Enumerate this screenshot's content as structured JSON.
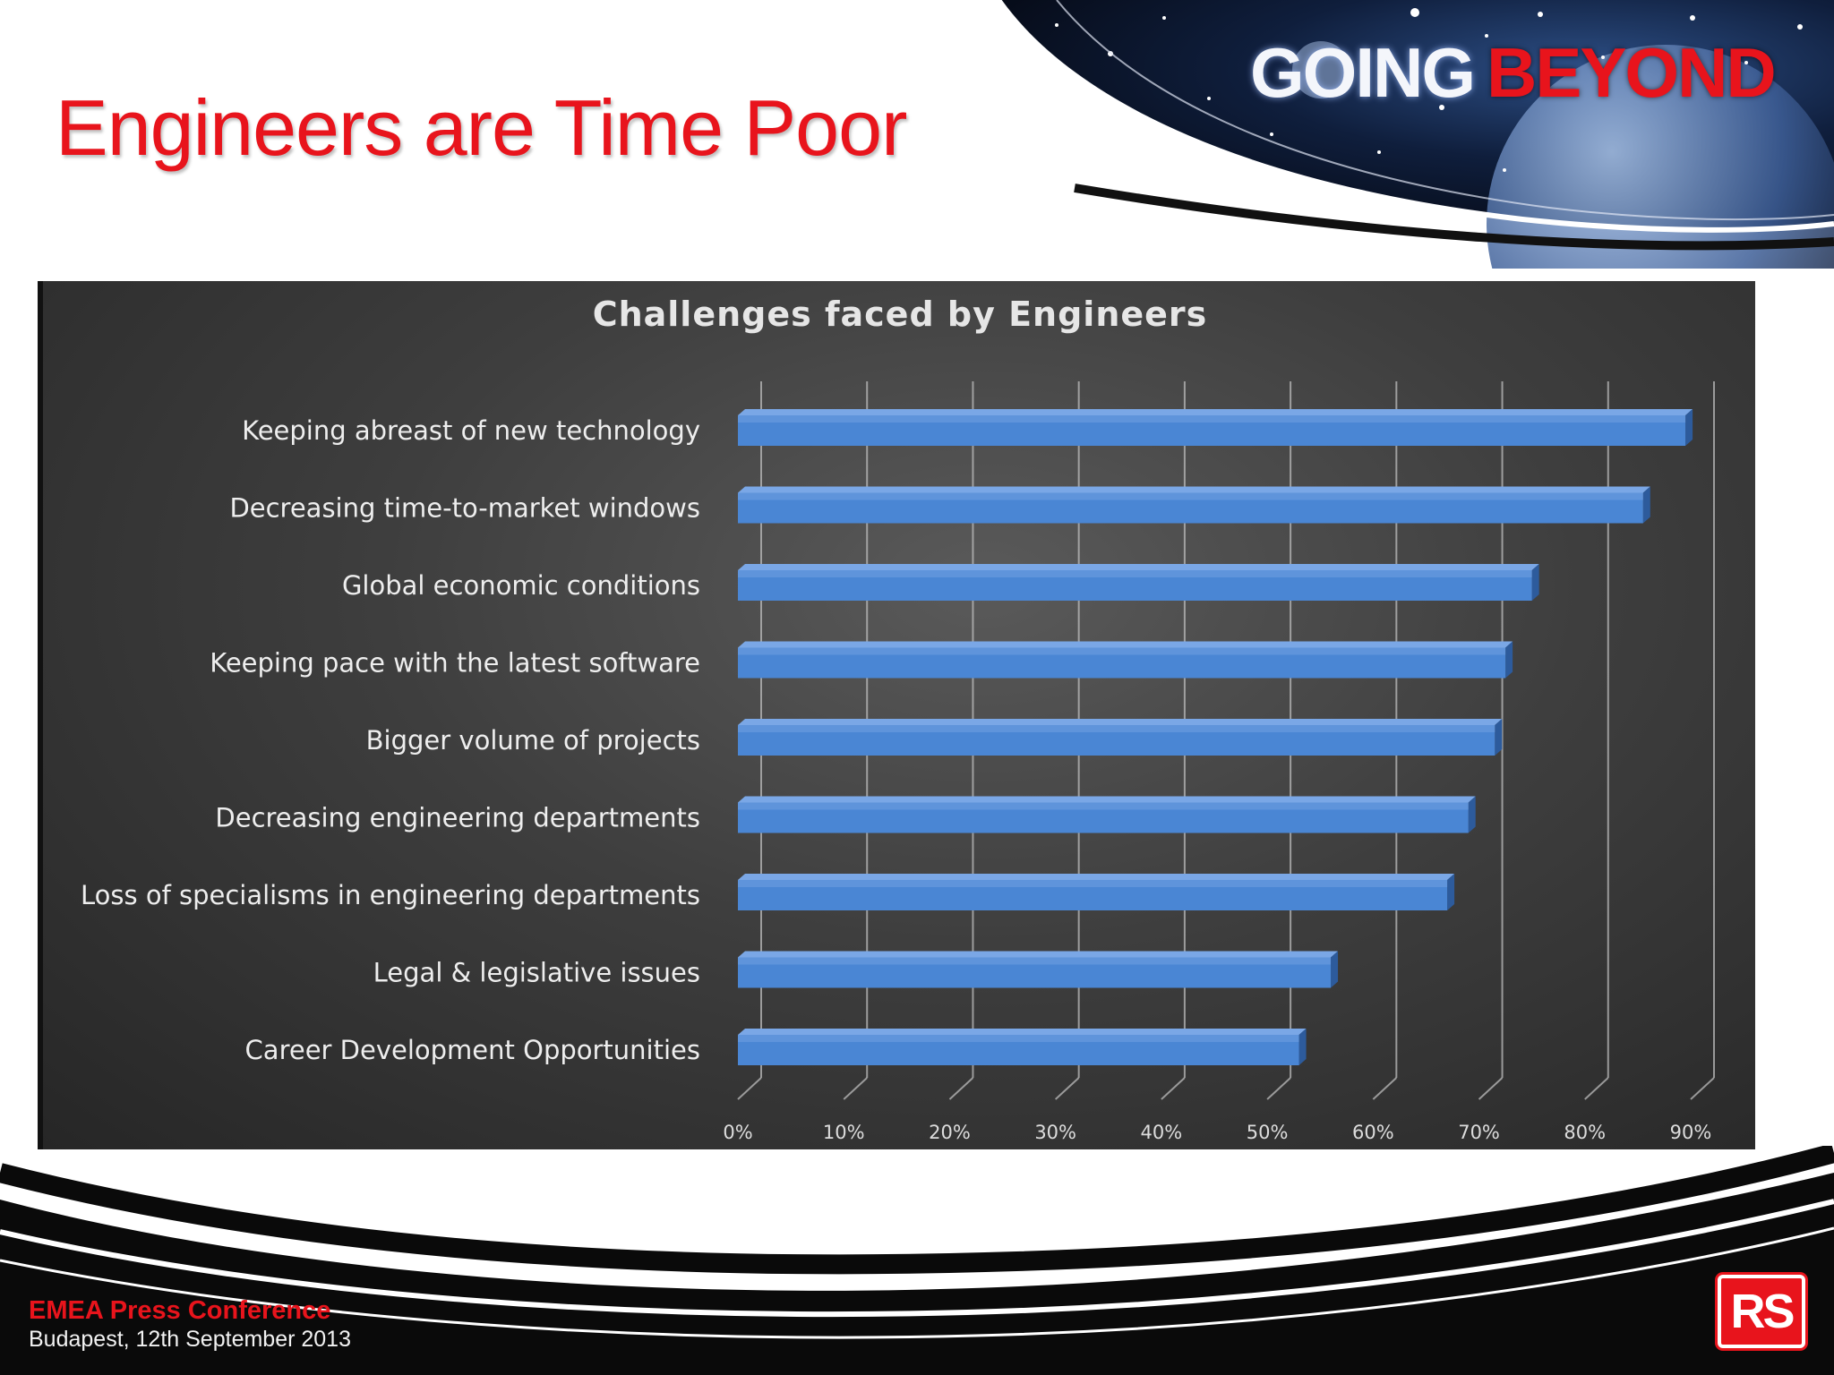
{
  "slide": {
    "title": "Engineers are Time Poor",
    "logo_word1": "GOING",
    "logo_word2": "BEYOND",
    "footer_conference": "EMEA Press Conference",
    "footer_place_date": "Budapest, 12th September 2013",
    "brand_logo_text": "RS",
    "colors": {
      "accent_red": "#e8141c",
      "bar_blue": "#4a86d4",
      "panel_dark": "#3e3e3e"
    }
  },
  "chart_data": {
    "type": "bar",
    "orientation": "horizontal",
    "title": "Challenges faced by Engineers",
    "categories": [
      "Keeping abreast of new technology",
      "Decreasing time-to-market windows",
      "Global economic conditions",
      "Keeping pace with the latest software",
      "Bigger volume of projects",
      "Decreasing engineering departments",
      "Loss of specialisms in engineering departments",
      "Legal & legislative issues",
      "Career Development Opportunities"
    ],
    "values": [
      89.5,
      85.5,
      75,
      72.5,
      71.5,
      69,
      67,
      56,
      53
    ],
    "xlim": [
      0,
      90
    ],
    "xticks": [
      "0%",
      "10%",
      "20%",
      "30%",
      "40%",
      "50%",
      "60%",
      "70%",
      "80%",
      "90%"
    ],
    "grid": true,
    "legend": "none"
  }
}
